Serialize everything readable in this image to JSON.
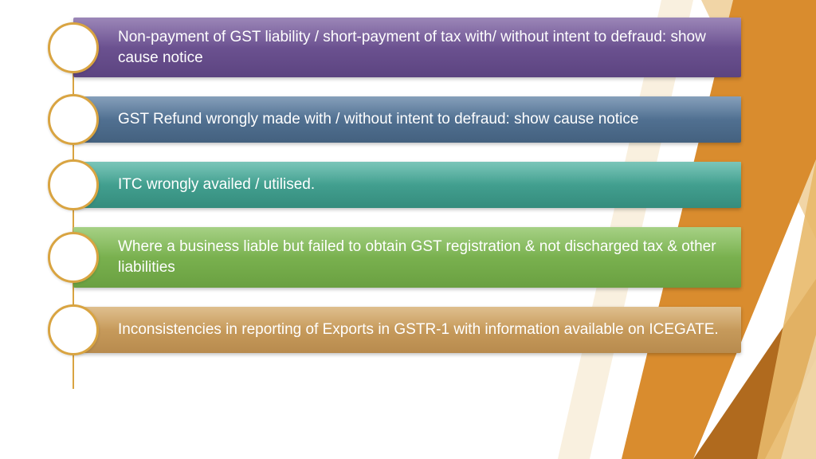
{
  "slide": {
    "background_color": "#ffffff",
    "accent_shapes": {
      "colors": [
        "#d98c2e",
        "#e8b96a",
        "#b06a1e",
        "#f0d9b0"
      ],
      "type": "angular-stripes-right"
    },
    "connector_color": "#d9a441",
    "circle_border_color": "#d9a441",
    "circle_fill": "#ffffff",
    "text_color": "#ffffff",
    "font_size": 19,
    "items": [
      {
        "text": "Non-payment of GST liability / short-payment of tax with/ without intent to defraud: show cause notice",
        "bar_color": "#6b4f8f",
        "bar_gradient_top": "#7a5ea0",
        "bar_gradient_bottom": "#5c4480"
      },
      {
        "text": "GST Refund  wrongly made with / without  intent to defraud: show cause notice",
        "bar_color": "#4f6f91",
        "bar_gradient_top": "#5d7fa3",
        "bar_gradient_bottom": "#44617f"
      },
      {
        "text": "ITC  wrongly availed / utilised.",
        "bar_color": "#3fa08f",
        "bar_gradient_top": "#4fb2a1",
        "bar_gradient_bottom": "#358c7d"
      },
      {
        "text": "Where a business  liable but failed to obtain GST registration & not discharged tax & other liabilities",
        "bar_color": "#78b14d",
        "bar_gradient_top": "#88c15c",
        "bar_gradient_bottom": "#6aa041"
      },
      {
        "text": "Inconsistencies in reporting of Exports in GSTR-1 with information available on  ICEGATE.",
        "bar_color": "#c79a5b",
        "bar_gradient_top": "#d4a968",
        "bar_gradient_bottom": "#b88b4e"
      }
    ]
  }
}
